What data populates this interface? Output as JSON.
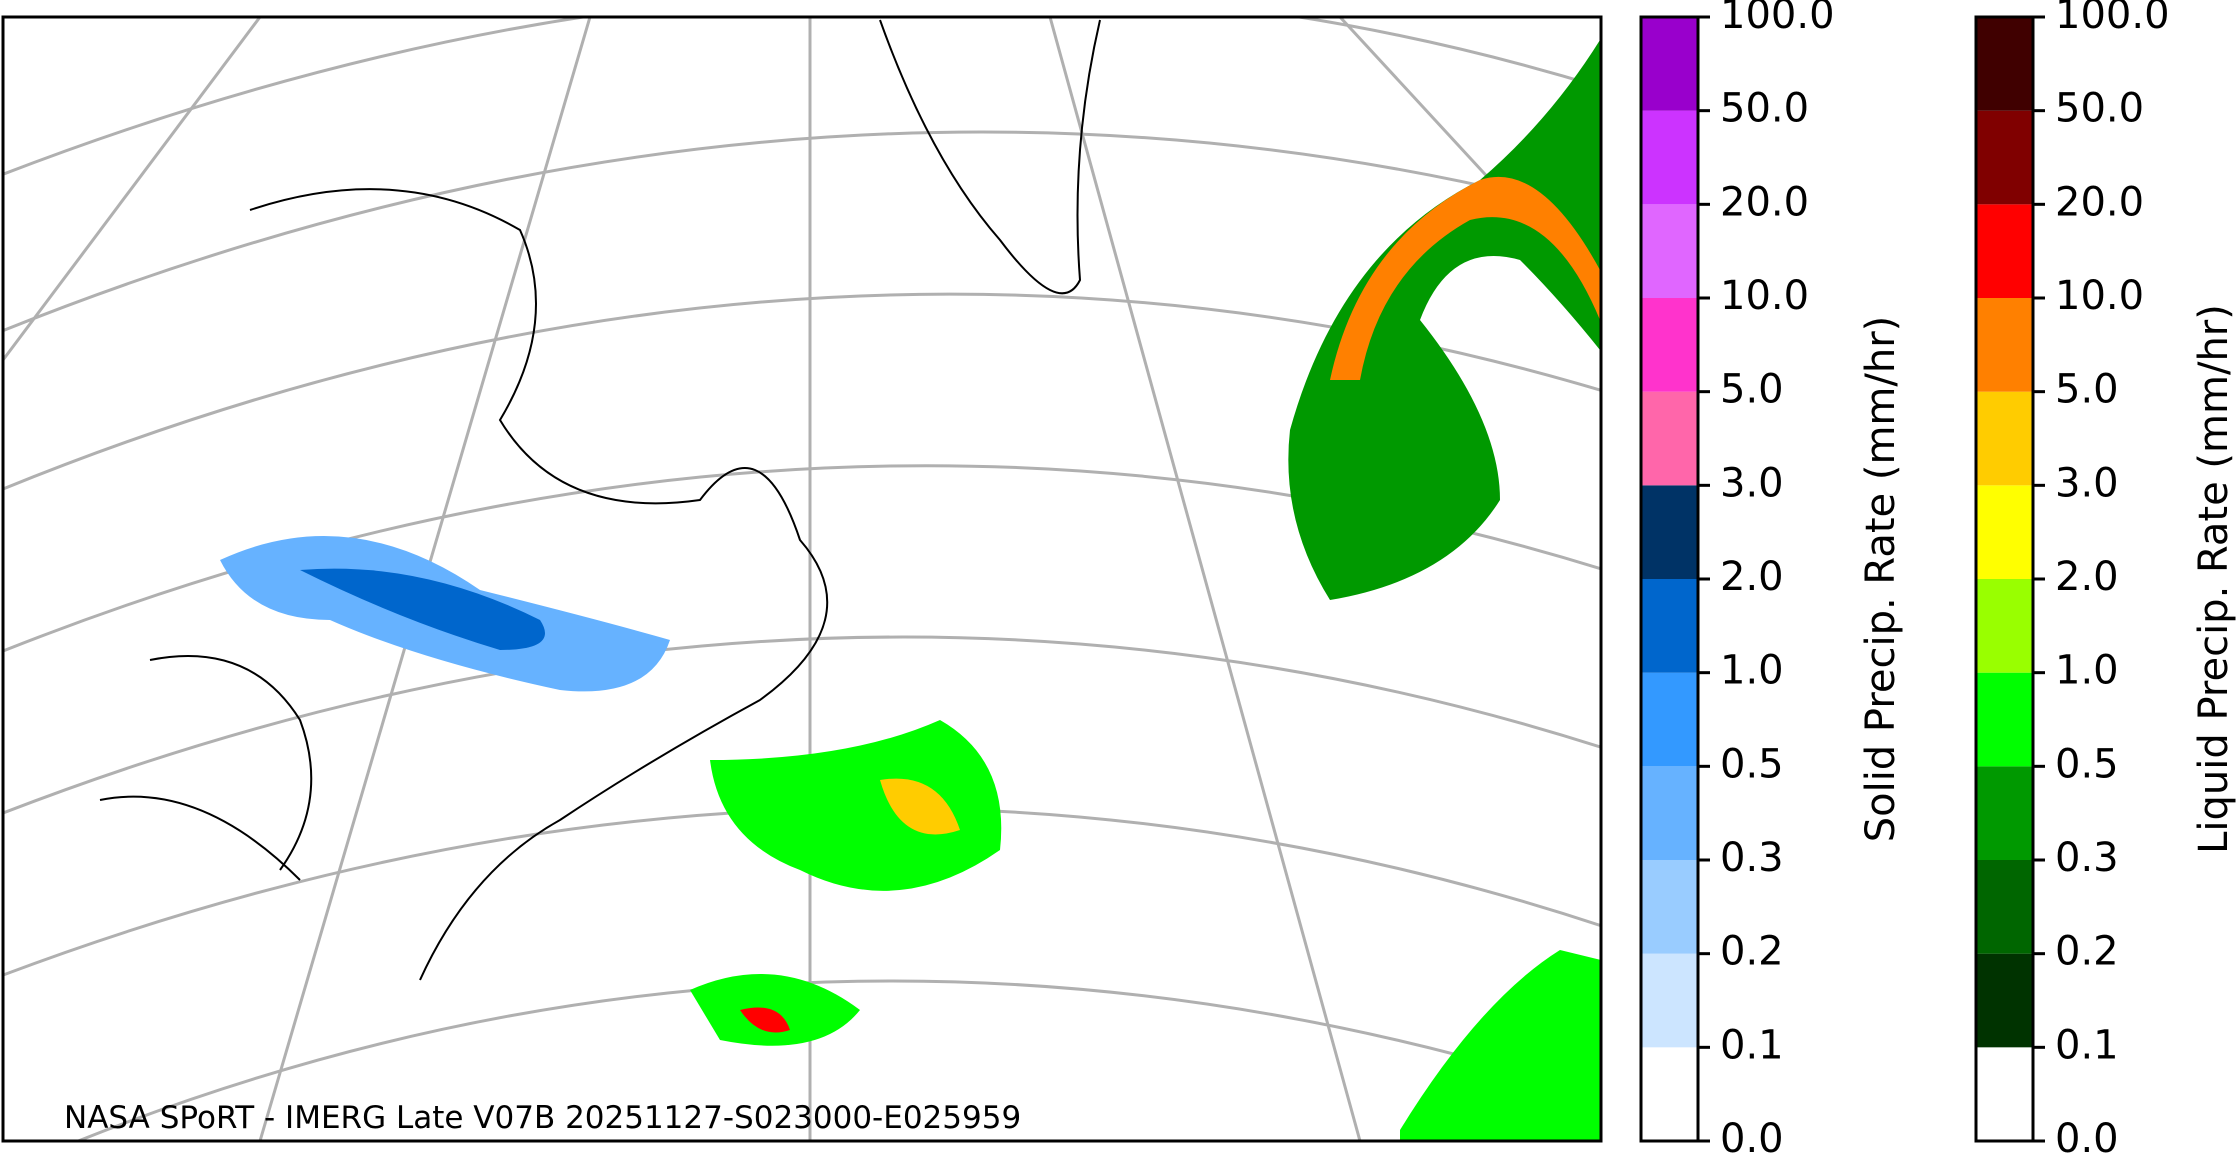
{
  "map": {
    "caption": "NASA SPoRT - IMERG Late V07B 20251127-S023000-E025959",
    "colorbars": [
      {
        "label": "Solid Precip. Rate (mm/hr)",
        "ticks": [
          {
            "value": 0,
            "label": "0.0"
          },
          {
            "value": 0.1,
            "label": "0.1"
          },
          {
            "value": 0.2,
            "label": "0.2"
          },
          {
            "value": 0.3,
            "label": "0.3"
          },
          {
            "value": 0.5,
            "label": "0.5"
          },
          {
            "value": 1,
            "label": "1.0"
          },
          {
            "value": 2,
            "label": "2.0"
          },
          {
            "value": 3,
            "label": "3.0"
          },
          {
            "value": 5,
            "label": "5.0"
          },
          {
            "value": 10,
            "label": "10.0"
          },
          {
            "value": 20,
            "label": "20.0"
          },
          {
            "value": 50,
            "label": "50.0"
          },
          {
            "value": 100,
            "label": "100.0"
          }
        ],
        "colors": [
          "#ffffff",
          "#cce5ff",
          "#99ccff",
          "#66b2ff",
          "#3399ff",
          "#0066cc",
          "#003366",
          "#ff66aa",
          "#ff33cc",
          "#e066ff",
          "#cc33ff",
          "#9900cc"
        ]
      },
      {
        "label": "Liquid Precip. Rate (mm/hr)",
        "ticks": [
          {
            "value": 0,
            "label": "0.0"
          },
          {
            "value": 0.1,
            "label": "0.1"
          },
          {
            "value": 0.2,
            "label": "0.2"
          },
          {
            "value": 0.3,
            "label": "0.3"
          },
          {
            "value": 0.5,
            "label": "0.5"
          },
          {
            "value": 1,
            "label": "1.0"
          },
          {
            "value": 2,
            "label": "2.0"
          },
          {
            "value": 3,
            "label": "3.0"
          },
          {
            "value": 5,
            "label": "5.0"
          },
          {
            "value": 10,
            "label": "10.0"
          },
          {
            "value": 20,
            "label": "20.0"
          },
          {
            "value": 50,
            "label": "50.0"
          },
          {
            "value": 100,
            "label": "100.0"
          }
        ],
        "colors": [
          "#ffffff",
          "#003300",
          "#006600",
          "#009900",
          "#00ff00",
          "#99ff00",
          "#ffff00",
          "#ffcc00",
          "#ff8000",
          "#ff0000",
          "#800000",
          "#400000"
        ]
      }
    ]
  }
}
